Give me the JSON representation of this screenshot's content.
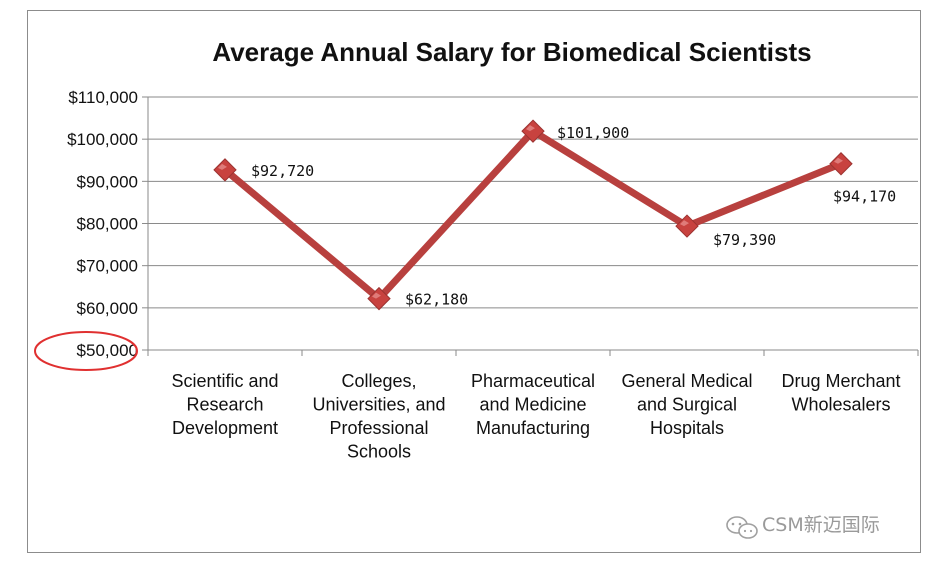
{
  "chart_data": {
    "type": "line",
    "title": "Average Annual  Salary for Biomedical Scientists",
    "categories": [
      [
        "Scientific and",
        "Research",
        "Development"
      ],
      [
        "Colleges,",
        "Universities, and",
        "Professional",
        "Schools"
      ],
      [
        "Pharmaceutical",
        "and Medicine",
        "Manufacturing"
      ],
      [
        "General Medical",
        "and Surgical",
        "Hospitals"
      ],
      [
        "Drug Merchant",
        "Wholesalers"
      ]
    ],
    "series": [
      {
        "name": "Average Annual Salary",
        "values": [
          92720,
          62180,
          101900,
          79390,
          94170
        ],
        "labels": [
          "$92,720",
          "$62,180",
          "$101,900",
          "$79,390",
          "$94,170"
        ],
        "color": "#b8403e",
        "marker": "diamond"
      }
    ],
    "y_ticks": [
      50000,
      60000,
      70000,
      80000,
      90000,
      100000,
      110000
    ],
    "y_tick_labels": [
      "$50,000",
      "$60,000",
      "$70,000",
      "$80,000",
      "$90,000",
      "$100,000",
      "$110,000"
    ],
    "ylim": [
      50000,
      110000
    ],
    "grid": true,
    "highlight": {
      "tick": "$50,000",
      "shape": "ellipse",
      "color": "#e03030"
    },
    "xlabel": "",
    "ylabel": ""
  },
  "watermark": {
    "text": "CSM新迈国际",
    "icon": "wechat-icon"
  }
}
